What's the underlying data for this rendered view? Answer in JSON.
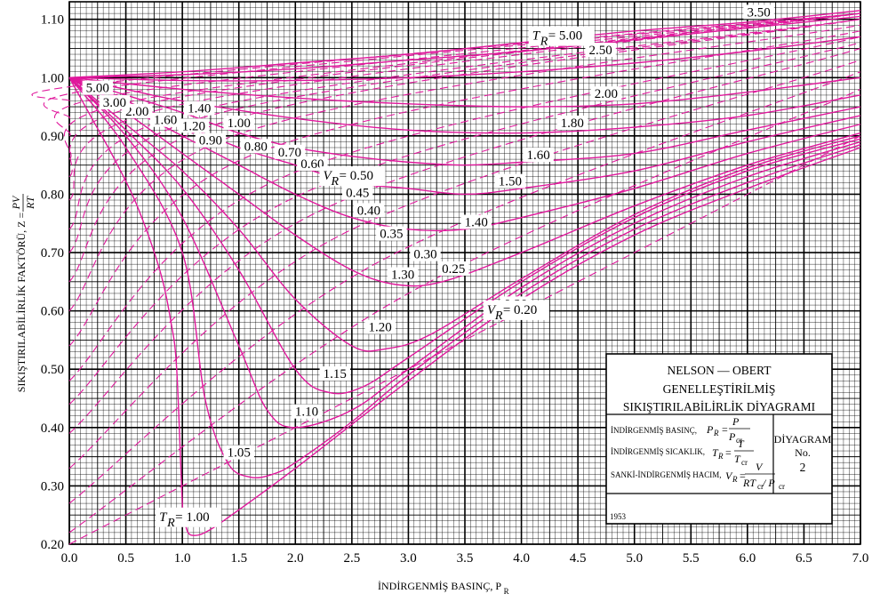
{
  "chart_data": {
    "type": "line",
    "xlabel": "İNDİRGENMİŞ BASINÇ, P",
    "xlabel_sub": "R",
    "ylabel": "SIKIŞTIRILABİLİRLİK FAKTÖRÜ, Z =",
    "ylabel_frac_num": "PV",
    "ylabel_frac_den": "RT",
    "xlim": [
      0.0,
      7.0
    ],
    "ylim": [
      0.2,
      1.13
    ],
    "x_ticks": [
      "0.0",
      "0.5",
      "1.0",
      "1.5",
      "2.0",
      "2.5",
      "3.0",
      "3.5",
      "4.0",
      "4.5",
      "5.0",
      "5.5",
      "6.0",
      "6.5",
      "7.0"
    ],
    "y_ticks": [
      "0.20",
      "0.30",
      "0.40",
      "0.50",
      "0.60",
      "0.70",
      "0.80",
      "0.90",
      "1.00",
      "1.10"
    ],
    "grid": true,
    "line_color": "#e0189c",
    "isotherms": [
      {
        "label": "1.00",
        "x": [
          0,
          0.2,
          0.4,
          0.6,
          0.8,
          0.9,
          0.95,
          1.0,
          1.02,
          1.05,
          1.1,
          1.2,
          1.4,
          2.0,
          3.0,
          4.0,
          5.0,
          6.0,
          7.0
        ],
        "y": [
          1.0,
          0.93,
          0.86,
          0.78,
          0.67,
          0.58,
          0.5,
          0.27,
          0.24,
          0.22,
          0.215,
          0.22,
          0.245,
          0.33,
          0.48,
          0.62,
          0.73,
          0.81,
          0.88
        ]
      },
      {
        "label": "1.05",
        "x": [
          0,
          0.5,
          1.0,
          1.2,
          1.4,
          1.6,
          1.8,
          2.0,
          2.5,
          3.0,
          4.0,
          5.0,
          6.0,
          7.0
        ],
        "y": [
          1.0,
          0.88,
          0.7,
          0.45,
          0.34,
          0.315,
          0.32,
          0.34,
          0.41,
          0.49,
          0.63,
          0.74,
          0.82,
          0.885
        ]
      },
      {
        "label": "1.10",
        "x": [
          0,
          0.5,
          1.0,
          1.5,
          1.75,
          2.0,
          2.5,
          3.0,
          4.0,
          5.0,
          6.0,
          7.0
        ],
        "y": [
          1.0,
          0.9,
          0.76,
          0.54,
          0.43,
          0.4,
          0.43,
          0.5,
          0.64,
          0.75,
          0.83,
          0.89
        ]
      },
      {
        "label": "1.15",
        "x": [
          0,
          0.5,
          1.0,
          1.5,
          2.0,
          2.3,
          2.6,
          3.0,
          4.0,
          5.0,
          6.0,
          7.0
        ],
        "y": [
          1.0,
          0.91,
          0.81,
          0.67,
          0.5,
          0.46,
          0.47,
          0.52,
          0.65,
          0.76,
          0.84,
          0.895
        ]
      },
      {
        "label": "1.20",
        "x": [
          0,
          0.5,
          1.0,
          1.5,
          2.0,
          2.5,
          2.8,
          3.2,
          4.0,
          5.0,
          6.0,
          7.0
        ],
        "y": [
          1.0,
          0.92,
          0.84,
          0.74,
          0.62,
          0.54,
          0.535,
          0.56,
          0.655,
          0.765,
          0.845,
          0.9
        ]
      },
      {
        "label": "1.30",
        "x": [
          0,
          0.5,
          1.0,
          1.5,
          2.0,
          2.5,
          2.9,
          3.3,
          4.0,
          5.0,
          6.0,
          7.0
        ],
        "y": [
          1.0,
          0.94,
          0.87,
          0.8,
          0.73,
          0.67,
          0.645,
          0.65,
          0.7,
          0.78,
          0.85,
          0.905
        ]
      },
      {
        "label": "1.40",
        "x": [
          0,
          0.5,
          1.0,
          1.5,
          2.0,
          2.5,
          3.0,
          3.5,
          4.0,
          5.0,
          6.0,
          7.0
        ],
        "y": [
          1.0,
          0.95,
          0.9,
          0.85,
          0.8,
          0.76,
          0.74,
          0.74,
          0.76,
          0.81,
          0.87,
          0.92
        ]
      },
      {
        "label": "1.50",
        "x": [
          0,
          0.5,
          1.0,
          1.5,
          2.0,
          2.5,
          3.0,
          3.5,
          4.0,
          5.0,
          6.0,
          7.0
        ],
        "y": [
          1.0,
          0.96,
          0.92,
          0.88,
          0.85,
          0.82,
          0.81,
          0.8,
          0.81,
          0.84,
          0.89,
          0.935
        ]
      },
      {
        "label": "1.60",
        "x": [
          0,
          0.5,
          1.0,
          1.5,
          2.0,
          2.5,
          3.0,
          3.5,
          4.0,
          5.0,
          6.0,
          7.0
        ],
        "y": [
          1.0,
          0.97,
          0.94,
          0.905,
          0.88,
          0.865,
          0.855,
          0.85,
          0.855,
          0.87,
          0.91,
          0.95
        ]
      },
      {
        "label": "1.80",
        "x": [
          0,
          0.5,
          1.0,
          2.0,
          3.0,
          4.0,
          5.0,
          6.0,
          7.0
        ],
        "y": [
          1.0,
          0.98,
          0.96,
          0.93,
          0.91,
          0.905,
          0.915,
          0.935,
          0.97
        ]
      },
      {
        "label": "2.00",
        "x": [
          0,
          1.0,
          2.0,
          3.0,
          4.0,
          5.0,
          6.0,
          7.0
        ],
        "y": [
          1.0,
          0.98,
          0.965,
          0.955,
          0.95,
          0.955,
          0.975,
          1.0
        ]
      },
      {
        "label": "2.50",
        "x": [
          0,
          1.0,
          2.0,
          3.0,
          4.0,
          5.0,
          6.0,
          7.0
        ],
        "y": [
          1.0,
          0.995,
          0.995,
          1.0,
          1.01,
          1.025,
          1.045,
          1.07
        ]
      },
      {
        "label": "3.50",
        "x": [
          0,
          1.0,
          2.0,
          3.0,
          4.0,
          5.0,
          6.0,
          7.0
        ],
        "y": [
          1.0,
          1.005,
          1.015,
          1.03,
          1.045,
          1.065,
          1.085,
          1.105
        ]
      },
      {
        "label": "5.00",
        "x": [
          0,
          1.0,
          2.0,
          3.0,
          4.0,
          5.0,
          6.0,
          7.0
        ],
        "y": [
          1.0,
          1.01,
          1.025,
          1.04,
          1.06,
          1.08,
          1.095,
          1.115
        ]
      }
    ],
    "isochores": [
      {
        "label": "0.20",
        "x": [
          0,
          3.5,
          7.0
        ],
        "y": [
          0.2,
          0.55,
          0.9
        ]
      },
      {
        "label": "0.25",
        "x": [
          0,
          3.0,
          7.0
        ],
        "y": [
          0.22,
          0.63,
          0.98
        ]
      },
      {
        "label": "0.30",
        "x": [
          0,
          2.7,
          7.0
        ],
        "y": [
          0.27,
          0.68,
          1.01
        ]
      },
      {
        "label": "0.35",
        "x": [
          0,
          2.4,
          7.0
        ],
        "y": [
          0.33,
          0.73,
          1.03
        ]
      },
      {
        "label": "0.40",
        "x": [
          0,
          2.2,
          7.0
        ],
        "y": [
          0.39,
          0.77,
          1.05
        ]
      },
      {
        "label": "0.45",
        "x": [
          0,
          2.05,
          7.0
        ],
        "y": [
          0.44,
          0.8,
          1.06
        ]
      },
      {
        "label": "0.50",
        "x": [
          0,
          1.9,
          7.0
        ],
        "y": [
          0.48,
          0.83,
          1.07
        ]
      },
      {
        "label": "0.60",
        "x": [
          0,
          1.65,
          7.0
        ],
        "y": [
          0.54,
          0.87,
          1.08
        ]
      },
      {
        "label": "0.70",
        "x": [
          0,
          1.45,
          7.0
        ],
        "y": [
          0.6,
          0.9,
          1.09
        ]
      },
      {
        "label": "0.80",
        "x": [
          0,
          1.3,
          7.0
        ],
        "y": [
          0.65,
          0.92,
          1.1
        ]
      },
      {
        "label": "0.90",
        "x": [
          0,
          1.15,
          7.0
        ],
        "y": [
          0.7,
          0.93,
          1.1
        ]
      },
      {
        "label": "1.00",
        "x": [
          0,
          1.05,
          7.0
        ],
        "y": [
          0.74,
          0.94,
          1.1
        ]
      },
      {
        "label": "1.20",
        "x": [
          0,
          0.9,
          7.0
        ],
        "y": [
          0.79,
          0.95,
          1.11
        ]
      },
      {
        "label": "1.40",
        "x": [
          0,
          0.8,
          7.0
        ],
        "y": [
          0.83,
          0.96,
          1.11
        ]
      },
      {
        "label": "1.60",
        "x": [
          0,
          0.7,
          7.0
        ],
        "y": [
          0.86,
          0.965,
          1.11
        ]
      },
      {
        "label": "2.00",
        "x": [
          0,
          0.55,
          7.0
        ],
        "y": [
          0.9,
          0.975,
          1.11
        ]
      },
      {
        "label": "3.00",
        "x": [
          0,
          0.4,
          7.0
        ],
        "y": [
          0.93,
          0.985,
          1.11
        ]
      },
      {
        "label": "5.00",
        "x": [
          0,
          0.25,
          7.0
        ],
        "y": [
          0.96,
          0.99,
          1.11
        ]
      }
    ],
    "labels": [
      {
        "text": "1.05",
        "x": 1.5,
        "y": 0.35
      },
      {
        "text": "1.10",
        "x": 2.1,
        "y": 0.42
      },
      {
        "text": "1.15",
        "x": 2.35,
        "y": 0.485
      },
      {
        "text": "1.20",
        "x": 2.75,
        "y": 0.565
      },
      {
        "text": "1.30",
        "x": 2.95,
        "y": 0.655
      },
      {
        "text": "1.40",
        "x": 3.6,
        "y": 0.745
      },
      {
        "text": "1.50",
        "x": 3.9,
        "y": 0.815
      },
      {
        "text": "1.60",
        "x": 4.15,
        "y": 0.86
      },
      {
        "text": "1.80",
        "x": 4.45,
        "y": 0.915
      },
      {
        "text": "2.00",
        "x": 4.75,
        "y": 0.965
      },
      {
        "text": "2.50",
        "x": 4.7,
        "y": 1.04
      },
      {
        "text": "3.50",
        "x": 6.1,
        "y": 1.105
      },
      {
        "text": "0.20",
        "x": 3.95,
        "y": 0.605
      },
      {
        "text": "0.25",
        "x": 3.4,
        "y": 0.665
      },
      {
        "text": "0.30",
        "x": 3.15,
        "y": 0.69
      },
      {
        "text": "0.35",
        "x": 2.85,
        "y": 0.725
      },
      {
        "text": "0.40",
        "x": 2.65,
        "y": 0.765
      },
      {
        "text": "0.45",
        "x": 2.55,
        "y": 0.795
      },
      {
        "text": "0.50",
        "x": 2.45,
        "y": 0.822
      },
      {
        "text": "0.60",
        "x": 2.15,
        "y": 0.845
      },
      {
        "text": "0.70",
        "x": 1.95,
        "y": 0.865
      },
      {
        "text": "0.80",
        "x": 1.65,
        "y": 0.875
      },
      {
        "text": "0.90",
        "x": 1.25,
        "y": 0.885
      },
      {
        "text": "1.00",
        "x": 1.5,
        "y": 0.915
      },
      {
        "text": "1.20",
        "x": 1.1,
        "y": 0.91
      },
      {
        "text": "1.40",
        "x": 1.15,
        "y": 0.94
      },
      {
        "text": "1.60",
        "x": 0.85,
        "y": 0.92
      },
      {
        "text": "2.00",
        "x": 0.6,
        "y": 0.935
      },
      {
        "text": "3.00",
        "x": 0.4,
        "y": 0.95
      },
      {
        "text": "5.00",
        "x": 0.25,
        "y": 0.975
      }
    ],
    "tr_label": {
      "prefix": "T",
      "sub": "R",
      "value": "= 1.00",
      "x": 1.0,
      "y": 0.24
    },
    "tr_label_top": {
      "prefix": "T",
      "sub": "R",
      "value": "= 5.00",
      "x": 4.3,
      "y": 1.065
    },
    "vr_label": {
      "prefix": "V",
      "sub": "R",
      "value": "= 0.50",
      "x": 2.45,
      "y": 0.825
    },
    "vr_label_lower": {
      "prefix": "V",
      "sub": "R",
      "value": "= 0.20",
      "x": 3.9,
      "y": 0.595
    }
  },
  "legend": {
    "title1": "NELSON — OBERT",
    "title2": "GENELLEŞTİRİLMİŞ",
    "title3": "SIKIŞTIRILABİLİRLİK DİYAGRAMI",
    "row1_label": "İNDİRGENMİŞ BASINÇ,",
    "row1_lhs": "P",
    "row1_lhs_sub": "R",
    "row1_eq": "=",
    "row1_num": "P",
    "row1_den": "P",
    "row1_den_sub": "cr",
    "row2_label": "İNDİRGENMİŞ SICAKLIK,",
    "row2_lhs": "T",
    "row2_lhs_sub": "R",
    "row2_eq": "=",
    "row2_num": "T",
    "row2_den": "T",
    "row2_den_sub": "cr",
    "row3_label": "SANKİ-İNDİRGENMİŞ HACIM,",
    "row3_lhs": "V",
    "row3_lhs_sub": "R",
    "row3_eq": "=",
    "row3_num": "V",
    "row3_den": "RT",
    "row3_den_sub1": "cr",
    "row3_den_mid": "/ P",
    "row3_den_sub2": "cr",
    "diagram_label": "DİYAGRAM",
    "diagram_no": "No.",
    "diagram_num": "2",
    "year": "1953"
  }
}
